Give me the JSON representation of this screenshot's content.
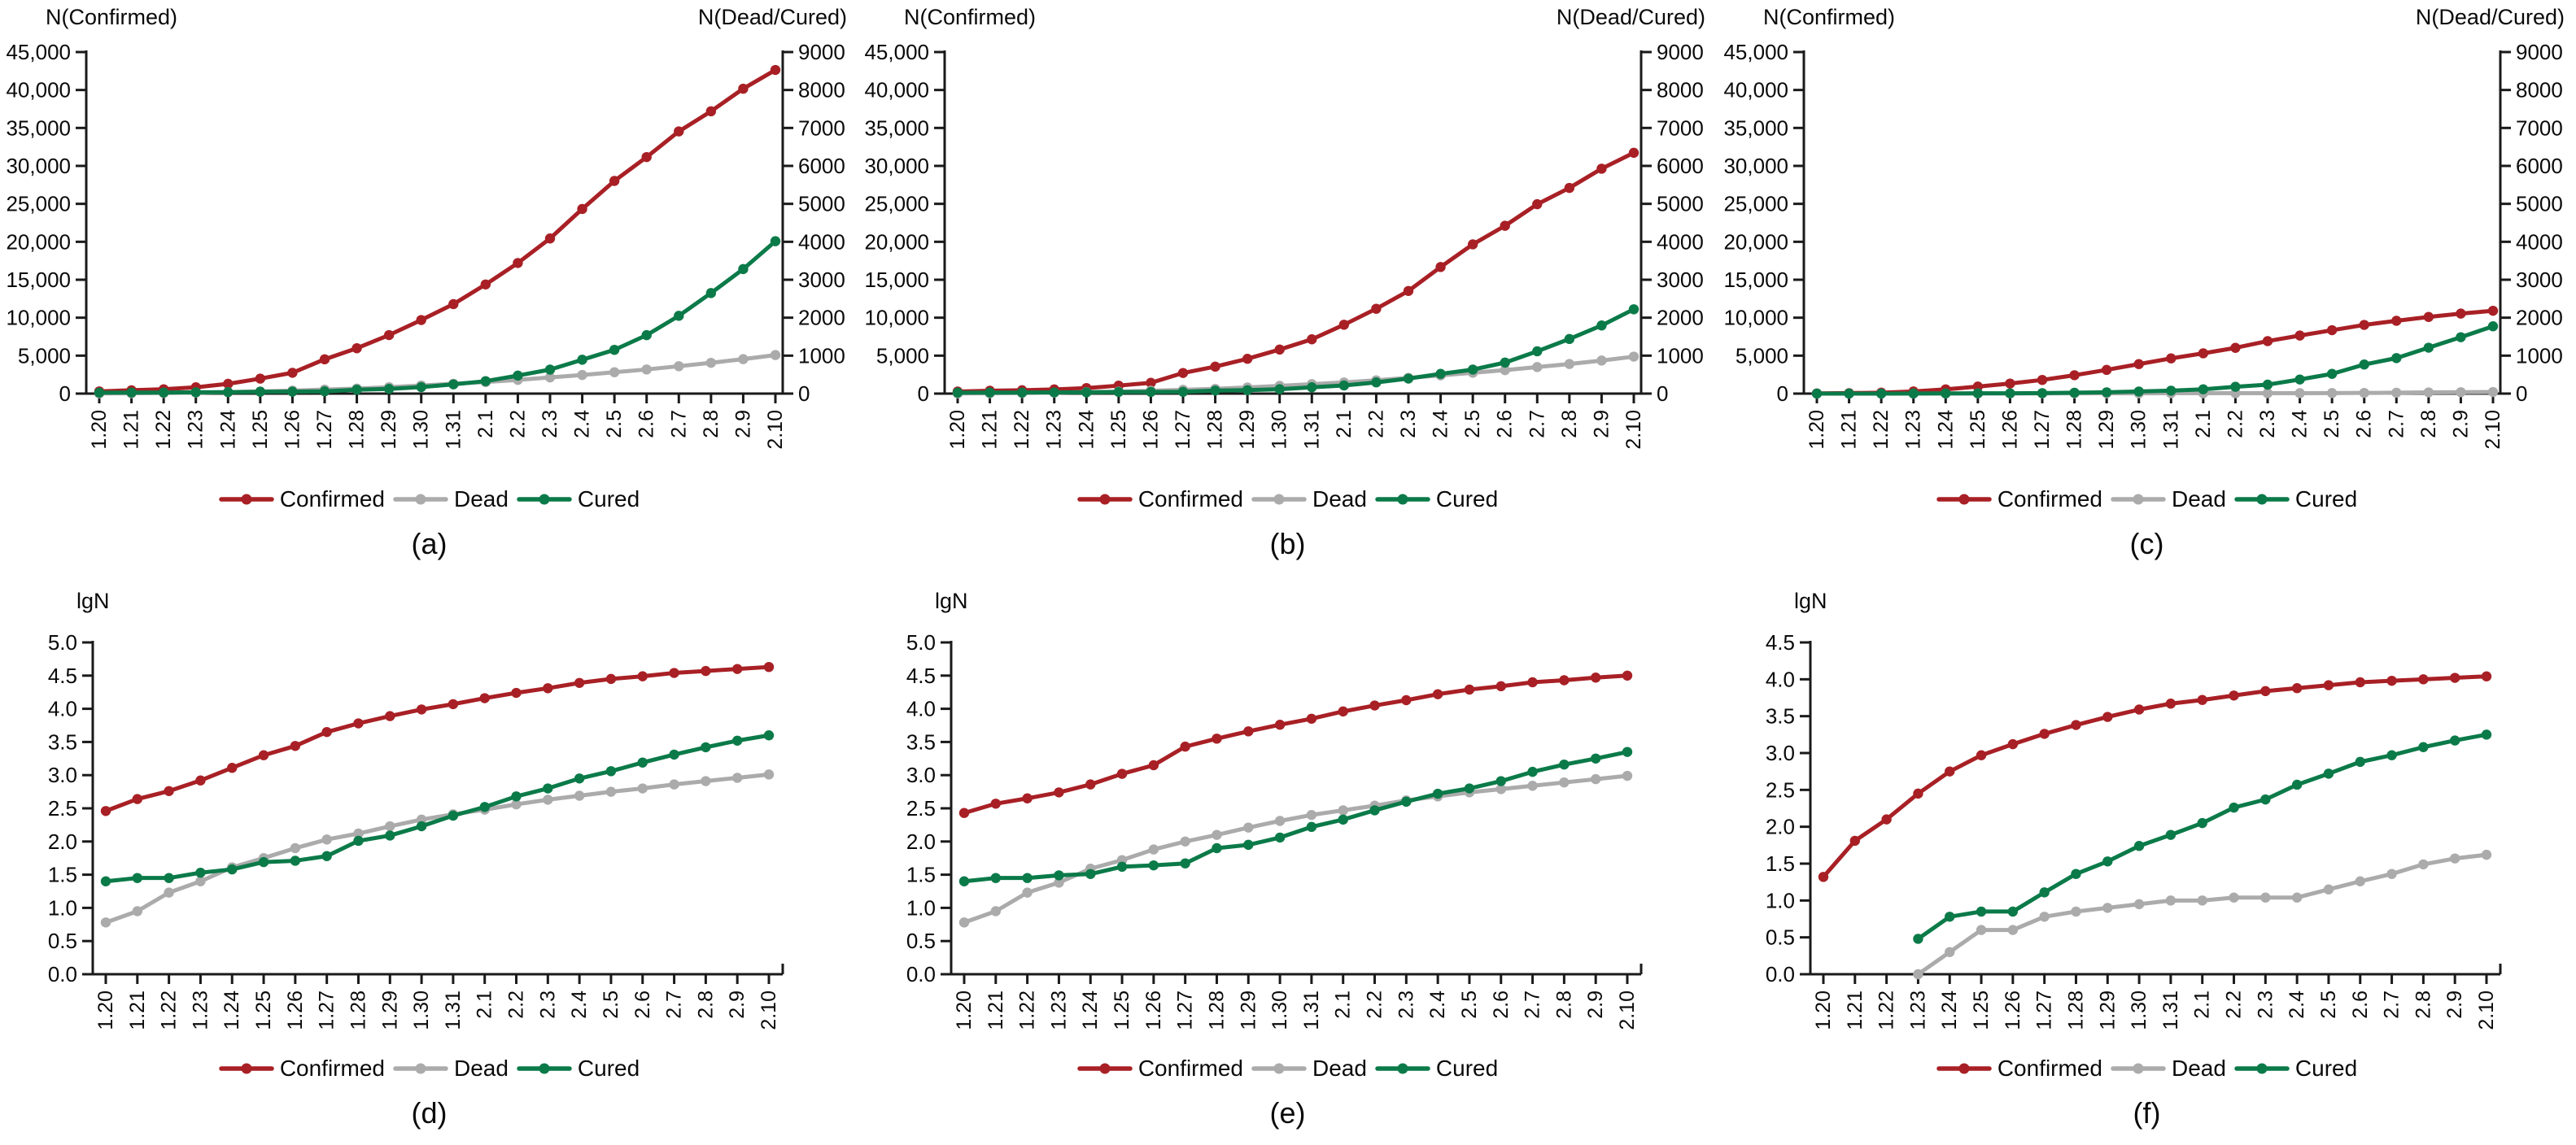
{
  "figure": {
    "description": "Six line charts (a-f) of epidemic counts: top row absolute numbers with dual y-axes, bottom row log10 values",
    "colors": {
      "confirmed": "#A82025",
      "dead": "#ABABAB",
      "cured": "#0B7A49",
      "axis": "#1a1a1a"
    }
  },
  "chart_data": [
    {
      "id": "a",
      "caption": "(a)",
      "type": "line",
      "kind": "dual_axis",
      "left_axis": {
        "label": "N(Confirmed)",
        "min": 0,
        "max": 45000,
        "tick_labels": [
          "0",
          "5,000",
          "10,000",
          "15,000",
          "20,000",
          "25,000",
          "30,000",
          "35,000",
          "40,000",
          "45,000"
        ]
      },
      "right_axis": {
        "label": "N(Dead/Cured)",
        "min": 0,
        "max": 9000,
        "tick_labels": [
          "0",
          "1000",
          "2000",
          "3000",
          "4000",
          "5000",
          "6000",
          "7000",
          "8000",
          "9000"
        ]
      },
      "categories": [
        "1.20",
        "1.21",
        "1.22",
        "1.23",
        "1.24",
        "1.25",
        "1.26",
        "1.27",
        "1.28",
        "1.29",
        "1.30",
        "1.31",
        "2.1",
        "2.2",
        "2.3",
        "2.4",
        "2.5",
        "2.6",
        "2.7",
        "2.8",
        "2.9",
        "2.10"
      ],
      "series": [
        {
          "name": "Confirmed",
          "color": "#A82025",
          "axis": "left",
          "values": [
            291,
            440,
            571,
            830,
            1287,
            1975,
            2744,
            4515,
            5974,
            7711,
            9692,
            11791,
            14380,
            17205,
            20438,
            24324,
            28018,
            31161,
            34546,
            37198,
            40171,
            42638
          ]
        },
        {
          "name": "Dead",
          "color": "#ABABAB",
          "axis": "right",
          "values": [
            6,
            9,
            17,
            25,
            41,
            56,
            80,
            106,
            132,
            170,
            213,
            259,
            304,
            361,
            425,
            490,
            563,
            636,
            722,
            811,
            908,
            1016
          ]
        },
        {
          "name": "Cured",
          "color": "#0B7A49",
          "axis": "right",
          "values": [
            25,
            28,
            28,
            34,
            38,
            49,
            51,
            60,
            103,
            124,
            171,
            243,
            328,
            475,
            632,
            892,
            1153,
            1540,
            2050,
            2649,
            3281,
            4015
          ]
        }
      ]
    },
    {
      "id": "b",
      "caption": "(b)",
      "type": "line",
      "kind": "dual_axis",
      "left_axis": {
        "label": "N(Confirmed)",
        "min": 0,
        "max": 45000,
        "tick_labels": [
          "0",
          "5,000",
          "10,000",
          "15,000",
          "20,000",
          "25,000",
          "30,000",
          "35,000",
          "40,000",
          "45,000"
        ]
      },
      "right_axis": {
        "label": "N(Dead/Cured)",
        "min": 0,
        "max": 9000,
        "tick_labels": [
          "0",
          "1000",
          "2000",
          "3000",
          "4000",
          "5000",
          "6000",
          "7000",
          "8000",
          "9000"
        ]
      },
      "categories": [
        "1.20",
        "1.21",
        "1.22",
        "1.23",
        "1.24",
        "1.25",
        "1.26",
        "1.27",
        "1.28",
        "1.29",
        "1.30",
        "1.31",
        "2.1",
        "2.2",
        "2.3",
        "2.4",
        "2.5",
        "2.6",
        "2.7",
        "2.8",
        "2.9",
        "2.10"
      ],
      "series": [
        {
          "name": "Confirmed",
          "color": "#A82025",
          "axis": "left",
          "values": [
            270,
            375,
            444,
            549,
            729,
            1052,
            1423,
            2714,
            3554,
            4586,
            5806,
            7153,
            9074,
            11177,
            13522,
            16678,
            19665,
            22112,
            24953,
            27100,
            29631,
            31728
          ]
        },
        {
          "name": "Dead",
          "color": "#ABABAB",
          "axis": "right",
          "values": [
            6,
            9,
            17,
            24,
            39,
            52,
            76,
            100,
            125,
            162,
            204,
            249,
            294,
            350,
            414,
            479,
            549,
            618,
            699,
            780,
            871,
            974
          ]
        },
        {
          "name": "Cured",
          "color": "#0B7A49",
          "axis": "right",
          "values": [
            25,
            28,
            28,
            31,
            32,
            42,
            44,
            47,
            80,
            90,
            116,
            166,
            215,
            295,
            396,
            520,
            633,
            817,
            1115,
            1439,
            1795,
            2222
          ]
        }
      ]
    },
    {
      "id": "c",
      "caption": "(c)",
      "type": "line",
      "kind": "dual_axis",
      "left_axis": {
        "label": "N(Confirmed)",
        "min": 0,
        "max": 45000,
        "tick_labels": [
          "0",
          "5,000",
          "10,000",
          "15,000",
          "20,000",
          "25,000",
          "30,000",
          "35,000",
          "40,000",
          "45,000"
        ]
      },
      "right_axis": {
        "label": "N(Dead/Cured)",
        "min": 0,
        "max": 9000,
        "tick_labels": [
          "0",
          "1000",
          "2000",
          "3000",
          "4000",
          "5000",
          "6000",
          "7000",
          "8000",
          "9000"
        ]
      },
      "categories": [
        "1.20",
        "1.21",
        "1.22",
        "1.23",
        "1.24",
        "1.25",
        "1.26",
        "1.27",
        "1.28",
        "1.29",
        "1.30",
        "1.31",
        "2.1",
        "2.2",
        "2.3",
        "2.4",
        "2.5",
        "2.6",
        "2.7",
        "2.8",
        "2.9",
        "2.10"
      ],
      "series": [
        {
          "name": "Confirmed",
          "color": "#A82025",
          "axis": "left",
          "values": [
            21,
            65,
            127,
            281,
            558,
            923,
            1321,
            1801,
            2420,
            3125,
            3886,
            4638,
            5306,
            6028,
            6916,
            7646,
            8353,
            9049,
            9593,
            10098,
            10540,
            10910
          ]
        },
        {
          "name": "Dead",
          "color": "#ABABAB",
          "axis": "right",
          "values": [
            0,
            0,
            0,
            1,
            2,
            4,
            4,
            6,
            7,
            8,
            9,
            10,
            10,
            11,
            11,
            11,
            14,
            18,
            23,
            31,
            37,
            42
          ]
        },
        {
          "name": "Cured",
          "color": "#0B7A49",
          "axis": "right",
          "values": [
            0,
            0,
            0,
            3,
            6,
            7,
            7,
            13,
            23,
            34,
            55,
            77,
            113,
            180,
            236,
            372,
            520,
            766,
            935,
            1210,
            1486,
            1774
          ]
        }
      ]
    },
    {
      "id": "d",
      "caption": "(d)",
      "type": "line",
      "kind": "single_axis",
      "y_axis": {
        "label": "lgN",
        "min": 0,
        "max": 5,
        "tick_labels": [
          "0.0",
          "0.5",
          "1.0",
          "1.5",
          "2.0",
          "2.5",
          "3.0",
          "3.5",
          "4.0",
          "4.5",
          "5.0"
        ]
      },
      "categories": [
        "1.20",
        "1.21",
        "1.22",
        "1.23",
        "1.24",
        "1.25",
        "1.26",
        "1.27",
        "1.28",
        "1.29",
        "1.30",
        "1.31",
        "2.1",
        "2.2",
        "2.3",
        "2.4",
        "2.5",
        "2.6",
        "2.7",
        "2.8",
        "2.9",
        "2.10"
      ],
      "series": [
        {
          "name": "Confirmed",
          "color": "#A82025",
          "values": [
            2.46,
            2.64,
            2.76,
            2.92,
            3.11,
            3.3,
            3.44,
            3.65,
            3.78,
            3.89,
            3.99,
            4.07,
            4.16,
            4.24,
            4.31,
            4.39,
            4.45,
            4.49,
            4.54,
            4.57,
            4.6,
            4.63
          ]
        },
        {
          "name": "Dead",
          "color": "#ABABAB",
          "values": [
            0.78,
            0.95,
            1.23,
            1.4,
            1.61,
            1.75,
            1.9,
            2.03,
            2.12,
            2.23,
            2.33,
            2.41,
            2.48,
            2.56,
            2.63,
            2.69,
            2.75,
            2.8,
            2.86,
            2.91,
            2.96,
            3.01
          ]
        },
        {
          "name": "Cured",
          "color": "#0B7A49",
          "values": [
            1.4,
            1.45,
            1.45,
            1.53,
            1.58,
            1.69,
            1.71,
            1.78,
            2.01,
            2.09,
            2.23,
            2.39,
            2.52,
            2.68,
            2.8,
            2.95,
            3.06,
            3.19,
            3.31,
            3.42,
            3.52,
            3.6
          ]
        }
      ]
    },
    {
      "id": "e",
      "caption": "(e)",
      "type": "line",
      "kind": "single_axis",
      "y_axis": {
        "label": "lgN",
        "min": 0,
        "max": 5,
        "tick_labels": [
          "0.0",
          "0.5",
          "1.0",
          "1.5",
          "2.0",
          "2.5",
          "3.0",
          "3.5",
          "4.0",
          "4.5",
          "5.0"
        ]
      },
      "categories": [
        "1.20",
        "1.21",
        "1.22",
        "1.23",
        "1.24",
        "1.25",
        "1.26",
        "1.27",
        "1.28",
        "1.29",
        "1.30",
        "1.31",
        "2.1",
        "2.2",
        "2.3",
        "2.4",
        "2.5",
        "2.6",
        "2.7",
        "2.8",
        "2.9",
        "2.10"
      ],
      "series": [
        {
          "name": "Confirmed",
          "color": "#A82025",
          "values": [
            2.43,
            2.57,
            2.65,
            2.74,
            2.86,
            3.02,
            3.15,
            3.43,
            3.55,
            3.66,
            3.76,
            3.85,
            3.96,
            4.05,
            4.13,
            4.22,
            4.29,
            4.34,
            4.4,
            4.43,
            4.47,
            4.5
          ]
        },
        {
          "name": "Dead",
          "color": "#ABABAB",
          "values": [
            0.78,
            0.95,
            1.23,
            1.38,
            1.59,
            1.72,
            1.88,
            2.0,
            2.1,
            2.21,
            2.31,
            2.4,
            2.47,
            2.54,
            2.62,
            2.68,
            2.74,
            2.79,
            2.84,
            2.89,
            2.94,
            2.99
          ]
        },
        {
          "name": "Cured",
          "color": "#0B7A49",
          "values": [
            1.4,
            1.45,
            1.45,
            1.49,
            1.51,
            1.62,
            1.64,
            1.67,
            1.9,
            1.95,
            2.06,
            2.22,
            2.33,
            2.47,
            2.6,
            2.72,
            2.8,
            2.91,
            3.05,
            3.16,
            3.25,
            3.35
          ]
        }
      ]
    },
    {
      "id": "f",
      "caption": "(f)",
      "type": "line",
      "kind": "single_axis",
      "y_axis": {
        "label": "lgN",
        "min": 0,
        "max": 4.5,
        "tick_labels": [
          "0.0",
          "0.5",
          "1.0",
          "1.5",
          "2.0",
          "2.5",
          "3.0",
          "3.5",
          "4.0",
          "4.5"
        ]
      },
      "categories": [
        "1.20",
        "1.21",
        "1.22",
        "1.23",
        "1.24",
        "1.25",
        "1.26",
        "1.27",
        "1.28",
        "1.29",
        "1.30",
        "1.31",
        "2.1",
        "2.2",
        "2.3",
        "2.4",
        "2.5",
        "2.6",
        "2.7",
        "2.8",
        "2.9",
        "2.10"
      ],
      "series": [
        {
          "name": "Confirmed",
          "color": "#A82025",
          "values": [
            1.32,
            1.81,
            2.1,
            2.45,
            2.75,
            2.97,
            3.12,
            3.26,
            3.38,
            3.49,
            3.59,
            3.67,
            3.72,
            3.78,
            3.84,
            3.88,
            3.92,
            3.96,
            3.98,
            4.0,
            4.02,
            4.04
          ]
        },
        {
          "name": "Dead",
          "color": "#ABABAB",
          "values": [
            null,
            null,
            null,
            0.0,
            0.3,
            0.6,
            0.6,
            0.78,
            0.85,
            0.9,
            0.95,
            1.0,
            1.0,
            1.04,
            1.04,
            1.04,
            1.15,
            1.26,
            1.36,
            1.49,
            1.57,
            1.62
          ]
        },
        {
          "name": "Cured",
          "color": "#0B7A49",
          "values": [
            null,
            null,
            null,
            0.48,
            0.78,
            0.85,
            0.85,
            1.11,
            1.36,
            1.53,
            1.74,
            1.89,
            2.05,
            2.26,
            2.37,
            2.57,
            2.72,
            2.88,
            2.97,
            3.08,
            3.17,
            3.25
          ]
        }
      ]
    }
  ]
}
